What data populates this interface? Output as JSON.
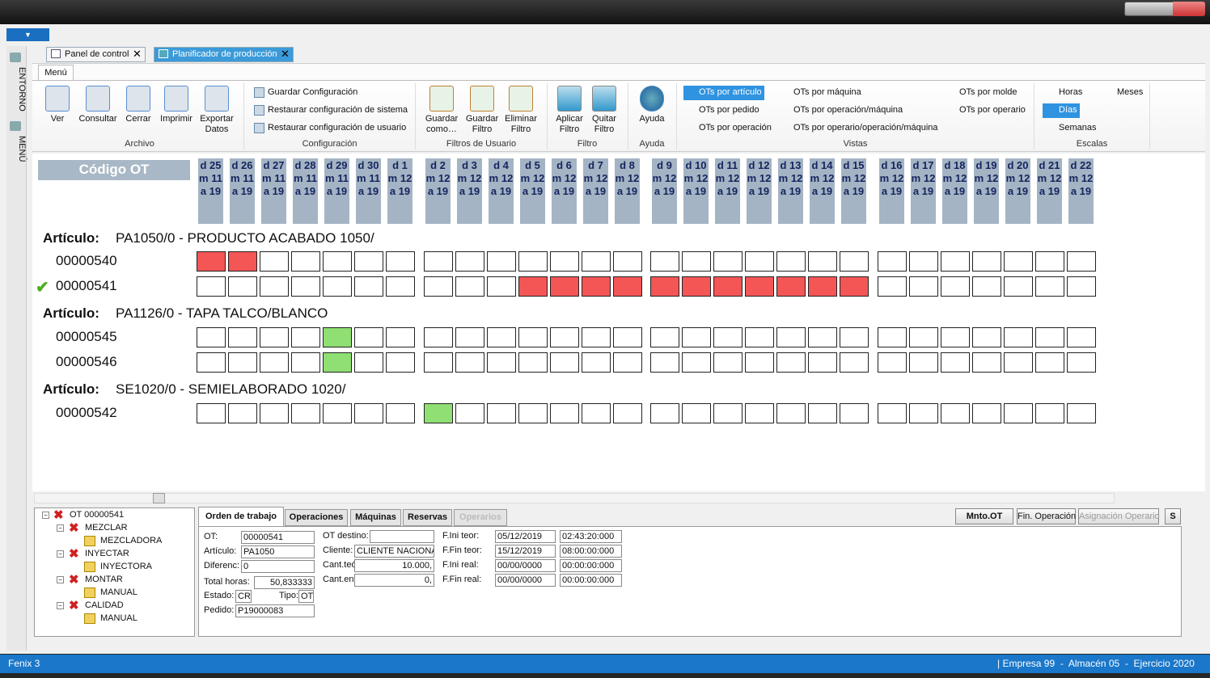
{
  "window": {
    "app_name": "Fenix 3",
    "status": "| Empresa 99  -  Almacén 05  -  Ejercicio 2020"
  },
  "sidebar": [
    "ENTORNO",
    "MENÚ"
  ],
  "doc_tabs": [
    "Panel de control",
    "Planificador de producción"
  ],
  "ribbon": {
    "tab": "Menú",
    "groups": [
      {
        "label": "Archivo",
        "buttons": [
          "Ver",
          "Consultar",
          "Cerrar",
          "Imprimir",
          "Exportar Datos"
        ]
      },
      {
        "label": "Configuración",
        "items": [
          "Guardar Configuración",
          "Restaurar configuración de sistema",
          "Restaurar configuración de usuario"
        ]
      },
      {
        "label": "Filtros de Usuario",
        "buttons": [
          "Guardar como…",
          "Guardar Filtro",
          "Eliminar Filtro"
        ]
      },
      {
        "label": "Filtro",
        "buttons": [
          "Aplicar Filtro",
          "Quitar Filtro"
        ]
      },
      {
        "label": "Ayuda",
        "buttons": [
          "Ayuda"
        ]
      },
      {
        "label": "Vistas",
        "items": [
          "OTs por artículo",
          "OTs por pedido",
          "OTs por operación",
          "OTs por máquina",
          "OTs por operación/máquina",
          "OTs por operario/operación/máquina",
          "OTs por molde",
          "OTs por operario"
        ],
        "selected": 0
      },
      {
        "label": "Escalas",
        "items": [
          "Horas",
          "Días",
          "Semanas",
          "Meses"
        ],
        "selected": 1
      }
    ]
  },
  "gantt": {
    "header": "Código OT",
    "days": [
      [
        "d 25",
        "m 11",
        "a 19"
      ],
      [
        "d 26",
        "m 11",
        "a 19"
      ],
      [
        "d 27",
        "m 11",
        "a 19"
      ],
      [
        "d 28",
        "m 11",
        "a 19"
      ],
      [
        "d 29",
        "m 11",
        "a 19"
      ],
      [
        "d 30",
        "m 11",
        "a 19"
      ],
      [
        "d 1",
        "m 12",
        "a 19"
      ],
      [
        "d 2",
        "m 12",
        "a 19"
      ],
      [
        "d 3",
        "m 12",
        "a 19"
      ],
      [
        "d 4",
        "m 12",
        "a 19"
      ],
      [
        "d 5",
        "m 12",
        "a 19"
      ],
      [
        "d 6",
        "m 12",
        "a 19"
      ],
      [
        "d 7",
        "m 12",
        "a 19"
      ],
      [
        "d 8",
        "m 12",
        "a 19"
      ],
      [
        "d 9",
        "m 12",
        "a 19"
      ],
      [
        "d 10",
        "m 12",
        "a 19"
      ],
      [
        "d 11",
        "m 12",
        "a 19"
      ],
      [
        "d 12",
        "m 12",
        "a 19"
      ],
      [
        "d 13",
        "m 12",
        "a 19"
      ],
      [
        "d 14",
        "m 12",
        "a 19"
      ],
      [
        "d 15",
        "m 12",
        "a 19"
      ],
      [
        "d 16",
        "m 12",
        "a 19"
      ],
      [
        "d 17",
        "m 12",
        "a 19"
      ],
      [
        "d 18",
        "m 12",
        "a 19"
      ],
      [
        "d 19",
        "m 12",
        "a 19"
      ],
      [
        "d 20",
        "m 12",
        "a 19"
      ],
      [
        "d 21",
        "m 12",
        "a 19"
      ],
      [
        "d 22",
        "m 12",
        "a 19"
      ]
    ],
    "week_size": 7,
    "cell_colors": [
      "#ffffff",
      "#f45555",
      "#8fdf73"
    ],
    "groups": [
      {
        "label": "Artículo:",
        "article": "PA1050/0 - PRODUCTO ACABADO 1050/",
        "orders": [
          {
            "code": "00000540",
            "checked": false,
            "cells": [
              1,
              1,
              0,
              0,
              0,
              0,
              0,
              0,
              0,
              0,
              0,
              0,
              0,
              0,
              0,
              0,
              0,
              0,
              0,
              0,
              0,
              0,
              0,
              0,
              0,
              0,
              0,
              0
            ]
          },
          {
            "code": "00000541",
            "checked": true,
            "cells": [
              0,
              0,
              0,
              0,
              0,
              0,
              0,
              0,
              0,
              0,
              1,
              1,
              1,
              1,
              1,
              1,
              1,
              1,
              1,
              1,
              1,
              0,
              0,
              0,
              0,
              0,
              0,
              0
            ]
          }
        ]
      },
      {
        "label": "Artículo:",
        "article": "PA1126/0 - TAPA TALCO/BLANCO",
        "orders": [
          {
            "code": "00000545",
            "checked": false,
            "cells": [
              0,
              0,
              0,
              0,
              2,
              0,
              0,
              0,
              0,
              0,
              0,
              0,
              0,
              0,
              0,
              0,
              0,
              0,
              0,
              0,
              0,
              0,
              0,
              0,
              0,
              0,
              0,
              0
            ]
          },
          {
            "code": "00000546",
            "checked": false,
            "cells": [
              0,
              0,
              0,
              0,
              2,
              0,
              0,
              0,
              0,
              0,
              0,
              0,
              0,
              0,
              0,
              0,
              0,
              0,
              0,
              0,
              0,
              0,
              0,
              0,
              0,
              0,
              0,
              0
            ]
          }
        ]
      },
      {
        "label": "Artículo:",
        "article": "SE1020/0 - SEMIELABORADO 1020/",
        "orders": [
          {
            "code": "00000542",
            "checked": false,
            "cells": [
              0,
              0,
              0,
              0,
              0,
              0,
              0,
              2,
              0,
              0,
              0,
              0,
              0,
              0,
              0,
              0,
              0,
              0,
              0,
              0,
              0,
              0,
              0,
              0,
              0,
              0,
              0,
              0
            ]
          }
        ]
      }
    ]
  },
  "tree": {
    "root": "OT 00000541",
    "children": [
      {
        "label": "MEZCLAR",
        "child": "MEZCLADORA"
      },
      {
        "label": "INYECTAR",
        "child": "INYECTORA"
      },
      {
        "label": "MONTAR",
        "child": "MANUAL"
      },
      {
        "label": "CALIDAD",
        "child": "MANUAL"
      }
    ]
  },
  "detail": {
    "tabs": [
      "Orden de trabajo",
      "Operaciones",
      "Máquinas",
      "Reservas",
      "Operarios"
    ],
    "active_tab": 0,
    "disabled_tabs": [
      4
    ],
    "buttons": [
      "Mnto.OT",
      "Fin. Operación",
      "Asignación Operario",
      "S"
    ],
    "disabled_buttons": [
      2
    ],
    "fields": [
      {
        "label": "OT:",
        "value": "00000541"
      },
      {
        "label": "Artículo:",
        "value": "PA1050"
      },
      {
        "label": "Diferenc:",
        "value": "0"
      },
      {
        "label": "Total horas:",
        "value": "50,833333"
      },
      {
        "label": "Estado:",
        "value": "CR"
      },
      {
        "label": "Tipo:",
        "value": "OT"
      },
      {
        "label": "Pedido:",
        "value": "P19000083"
      },
      {
        "label": "OT destino:"
      },
      {
        "label": "Cliente:",
        "value": "CLIENTE NACIONAL"
      },
      {
        "label": "Cant.teór:",
        "value": "10.000,"
      },
      {
        "label": "Cant.ent:",
        "value": "0,"
      },
      {
        "label": "F.Ini teor:",
        "value": "05/12/2019",
        "time": "02:43:20:000"
      },
      {
        "label": "F.Fin teor:",
        "value": "15/12/2019",
        "time": "08:00:00:000"
      },
      {
        "label": "F.Ini real:",
        "value": "00/00/0000",
        "time": "00:00:00:000"
      },
      {
        "label": "F.Fin real:",
        "value": "00/00/0000",
        "time": "00:00:00:000"
      }
    ]
  }
}
